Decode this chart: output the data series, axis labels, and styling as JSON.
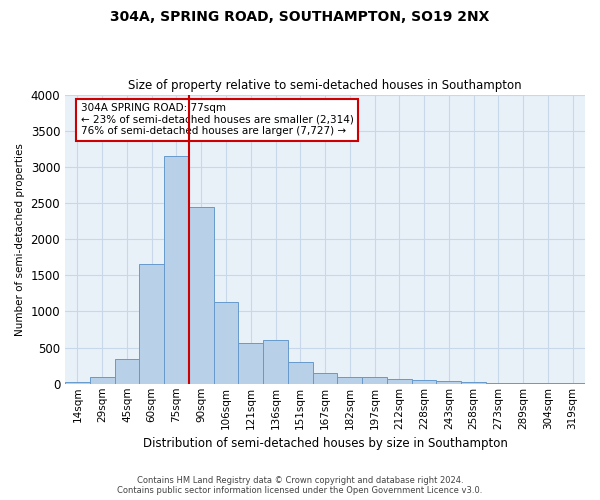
{
  "title": "304A, SPRING ROAD, SOUTHAMPTON, SO19 2NX",
  "subtitle": "Size of property relative to semi-detached houses in Southampton",
  "xlabel": "Distribution of semi-detached houses by size in Southampton",
  "ylabel": "Number of semi-detached properties",
  "footer_line1": "Contains HM Land Registry data © Crown copyright and database right 2024.",
  "footer_line2": "Contains public sector information licensed under the Open Government Licence v3.0.",
  "bar_color": "#b8d0e8",
  "bar_edge_color": "#6699cc",
  "grid_color": "#c8d8ea",
  "background_color": "#e8f0f8",
  "annotation_box_color": "#cc0000",
  "property_line_color": "#cc0000",
  "annotation_text": "304A SPRING ROAD: 77sqm\n← 23% of semi-detached houses are smaller (2,314)\n76% of semi-detached houses are larger (7,727) →",
  "categories": [
    "14sqm",
    "29sqm",
    "45sqm",
    "60sqm",
    "75sqm",
    "90sqm",
    "106sqm",
    "121sqm",
    "136sqm",
    "151sqm",
    "167sqm",
    "182sqm",
    "197sqm",
    "212sqm",
    "228sqm",
    "243sqm",
    "258sqm",
    "273sqm",
    "289sqm",
    "304sqm",
    "319sqm"
  ],
  "values": [
    25,
    95,
    340,
    1650,
    3150,
    2450,
    1130,
    570,
    610,
    300,
    150,
    95,
    95,
    65,
    55,
    40,
    30,
    12,
    8,
    4,
    4
  ],
  "property_line_index": 5,
  "ylim": [
    0,
    4000
  ],
  "yticks": [
    0,
    500,
    1000,
    1500,
    2000,
    2500,
    3000,
    3500,
    4000
  ]
}
